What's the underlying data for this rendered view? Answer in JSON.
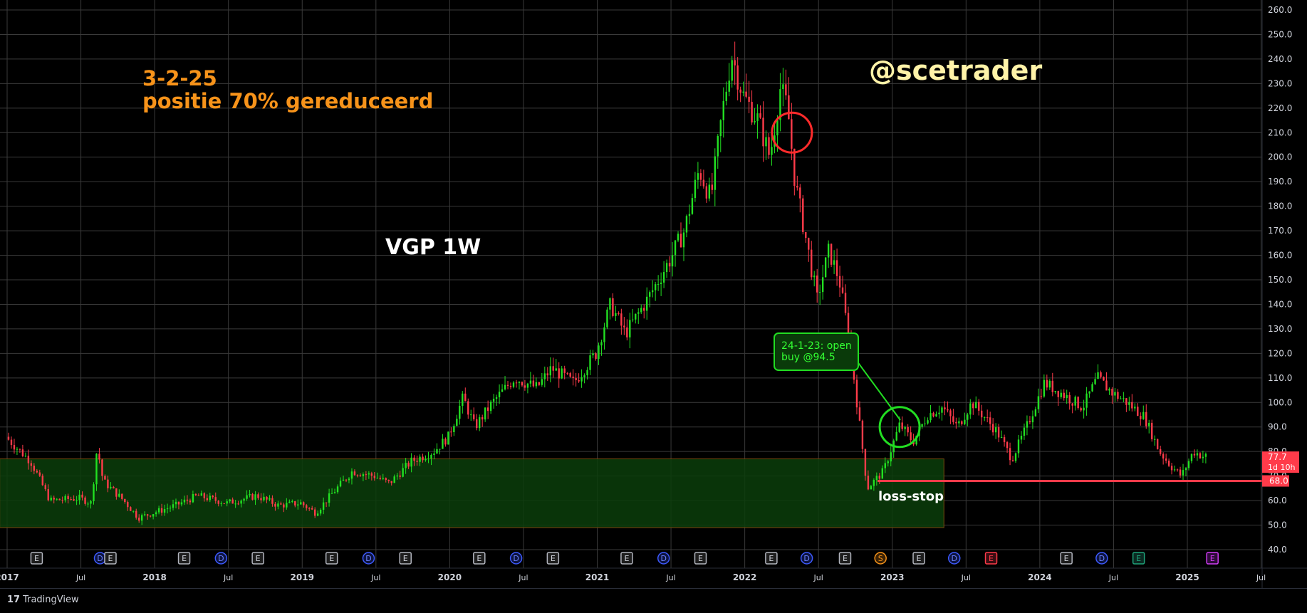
{
  "chart_data": {
    "type": "candlestick",
    "symbol_label": "VGP 1W",
    "y_axis": {
      "range": [
        35,
        262
      ],
      "ticks": [
        "260.0",
        "250.0",
        "240.0",
        "230.0",
        "220.0",
        "210.0",
        "200.0",
        "190.0",
        "180.0",
        "170.0",
        "160.0",
        "150.0",
        "140.0",
        "130.0",
        "120.0",
        "110.0",
        "100.0",
        "90.0",
        "80.0",
        "70.0",
        "60.0",
        "50.0",
        "40.0"
      ]
    },
    "x_axis": {
      "ticks": [
        {
          "label": "2017",
          "t": 2017.0,
          "major": true
        },
        {
          "label": "Jul",
          "t": 2017.5,
          "major": false
        },
        {
          "label": "2018",
          "t": 2018.0,
          "major": true
        },
        {
          "label": "Jul",
          "t": 2018.5,
          "major": false
        },
        {
          "label": "2019",
          "t": 2019.0,
          "major": true
        },
        {
          "label": "Jul",
          "t": 2019.5,
          "major": false
        },
        {
          "label": "2020",
          "t": 2020.0,
          "major": true
        },
        {
          "label": "Jul",
          "t": 2020.5,
          "major": false
        },
        {
          "label": "2021",
          "t": 2021.0,
          "major": true
        },
        {
          "label": "Jul",
          "t": 2021.5,
          "major": false
        },
        {
          "label": "2022",
          "t": 2022.0,
          "major": true
        },
        {
          "label": "Jul",
          "t": 2022.5,
          "major": false
        },
        {
          "label": "2023",
          "t": 2023.0,
          "major": true
        },
        {
          "label": "Jul",
          "t": 2023.5,
          "major": false
        },
        {
          "label": "2024",
          "t": 2024.0,
          "major": true
        },
        {
          "label": "Jul",
          "t": 2024.5,
          "major": false
        },
        {
          "label": "2025",
          "t": 2025.0,
          "major": true
        },
        {
          "label": "Jul",
          "t": 2025.5,
          "major": false
        }
      ]
    },
    "price_path": [
      [
        2017.0,
        86
      ],
      [
        2017.1,
        80
      ],
      [
        2017.17,
        76
      ],
      [
        2017.3,
        60
      ],
      [
        2017.5,
        61
      ],
      [
        2017.58,
        59
      ],
      [
        2017.62,
        82
      ],
      [
        2017.66,
        68
      ],
      [
        2017.8,
        60
      ],
      [
        2017.9,
        53
      ],
      [
        2018.0,
        55
      ],
      [
        2018.15,
        58
      ],
      [
        2018.3,
        62
      ],
      [
        2018.5,
        59
      ],
      [
        2018.7,
        62
      ],
      [
        2018.85,
        58
      ],
      [
        2019.0,
        59
      ],
      [
        2019.1,
        55
      ],
      [
        2019.2,
        62
      ],
      [
        2019.35,
        72
      ],
      [
        2019.5,
        70
      ],
      [
        2019.6,
        67
      ],
      [
        2019.75,
        76
      ],
      [
        2019.9,
        80
      ],
      [
        2020.0,
        86
      ],
      [
        2020.1,
        102
      ],
      [
        2020.18,
        90
      ],
      [
        2020.3,
        100
      ],
      [
        2020.45,
        110
      ],
      [
        2020.6,
        106
      ],
      [
        2020.7,
        114
      ],
      [
        2020.85,
        108
      ],
      [
        2021.0,
        120
      ],
      [
        2021.1,
        140
      ],
      [
        2021.2,
        128
      ],
      [
        2021.35,
        142
      ],
      [
        2021.5,
        158
      ],
      [
        2021.6,
        170
      ],
      [
        2021.7,
        195
      ],
      [
        2021.78,
        183
      ],
      [
        2021.85,
        215
      ],
      [
        2021.92,
        242
      ],
      [
        2022.0,
        225
      ],
      [
        2022.1,
        215
      ],
      [
        2022.18,
        200
      ],
      [
        2022.25,
        228
      ],
      [
        2022.3,
        220
      ],
      [
        2022.35,
        190
      ],
      [
        2022.42,
        168
      ],
      [
        2022.5,
        142
      ],
      [
        2022.58,
        162
      ],
      [
        2022.65,
        150
      ],
      [
        2022.72,
        125
      ],
      [
        2022.78,
        95
      ],
      [
        2022.84,
        65
      ],
      [
        2022.95,
        72
      ],
      [
        2023.06,
        91
      ],
      [
        2023.15,
        84
      ],
      [
        2023.25,
        95
      ],
      [
        2023.35,
        98
      ],
      [
        2023.45,
        90
      ],
      [
        2023.55,
        100
      ],
      [
        2023.72,
        88
      ],
      [
        2023.82,
        77
      ],
      [
        2023.92,
        90
      ],
      [
        2024.04,
        108
      ],
      [
        2024.15,
        104
      ],
      [
        2024.3,
        98
      ],
      [
        2024.4,
        110
      ],
      [
        2024.5,
        104
      ],
      [
        2024.6,
        100
      ],
      [
        2024.72,
        94
      ],
      [
        2024.82,
        80
      ],
      [
        2024.9,
        74
      ],
      [
        2024.97,
        70
      ],
      [
        2025.05,
        80
      ],
      [
        2025.12,
        78
      ]
    ],
    "support_zone": {
      "t0": 2016.95,
      "t1": 2023.35,
      "high": 77,
      "low": 49
    },
    "loss_stop": {
      "value": 68.0,
      "label": "68.0",
      "t_start": 2022.9
    },
    "last_price": {
      "value": 77.7,
      "label": "77.7",
      "countdown": "1d 10h"
    },
    "circles": [
      {
        "t": 2022.32,
        "v": 210,
        "color": "#ff2b2b"
      },
      {
        "t": 2023.05,
        "v": 90,
        "color": "#22dd22"
      }
    ],
    "events": [
      {
        "t": 2017.2,
        "letter": "E",
        "kind": "earnings"
      },
      {
        "t": 2017.63,
        "letter": "D",
        "kind": "dividend"
      },
      {
        "t": 2017.7,
        "letter": "E",
        "kind": "earnings"
      },
      {
        "t": 2018.2,
        "letter": "E",
        "kind": "earnings"
      },
      {
        "t": 2018.45,
        "letter": "D",
        "kind": "dividend"
      },
      {
        "t": 2018.7,
        "letter": "E",
        "kind": "earnings"
      },
      {
        "t": 2019.2,
        "letter": "E",
        "kind": "earnings"
      },
      {
        "t": 2019.45,
        "letter": "D",
        "kind": "dividend"
      },
      {
        "t": 2019.7,
        "letter": "E",
        "kind": "earnings"
      },
      {
        "t": 2020.2,
        "letter": "E",
        "kind": "earnings"
      },
      {
        "t": 2020.45,
        "letter": "D",
        "kind": "dividend"
      },
      {
        "t": 2020.7,
        "letter": "E",
        "kind": "earnings"
      },
      {
        "t": 2021.2,
        "letter": "E",
        "kind": "earnings"
      },
      {
        "t": 2021.45,
        "letter": "D",
        "kind": "dividend"
      },
      {
        "t": 2021.7,
        "letter": "E",
        "kind": "earnings"
      },
      {
        "t": 2022.18,
        "letter": "E",
        "kind": "earnings"
      },
      {
        "t": 2022.42,
        "letter": "D",
        "kind": "dividend"
      },
      {
        "t": 2022.68,
        "letter": "E",
        "kind": "earnings"
      },
      {
        "t": 2022.92,
        "letter": "S",
        "kind": "split"
      },
      {
        "t": 2023.18,
        "letter": "E",
        "kind": "earnings"
      },
      {
        "t": 2023.42,
        "letter": "D",
        "kind": "dividend"
      },
      {
        "t": 2023.67,
        "letter": "E",
        "kind": "earnings-red"
      },
      {
        "t": 2024.18,
        "letter": "E",
        "kind": "earnings"
      },
      {
        "t": 2024.42,
        "letter": "D",
        "kind": "dividend"
      },
      {
        "t": 2024.67,
        "letter": "E",
        "kind": "earnings-green"
      },
      {
        "t": 2025.17,
        "letter": "E",
        "kind": "earnings-purple"
      }
    ]
  },
  "annotations": {
    "date_line": "3-2-25",
    "position_line": "positie 70% gereduceerd",
    "symbol": "VGP 1W",
    "handle": "@scetrader",
    "loss_stop_text": "loss-stop",
    "callout_line1": "24-1-23: open",
    "callout_line2": "buy @94.5"
  },
  "footer": {
    "brand": "TradingView"
  },
  "colors": {
    "up": "#22e022",
    "down": "#ff3b4a",
    "grid": "#3a3a3a",
    "zone_fill": "#0b3d0b",
    "zone_stroke": "#7a4a10",
    "orange": "#f7931a",
    "loss_line": "#ff3b4a"
  }
}
